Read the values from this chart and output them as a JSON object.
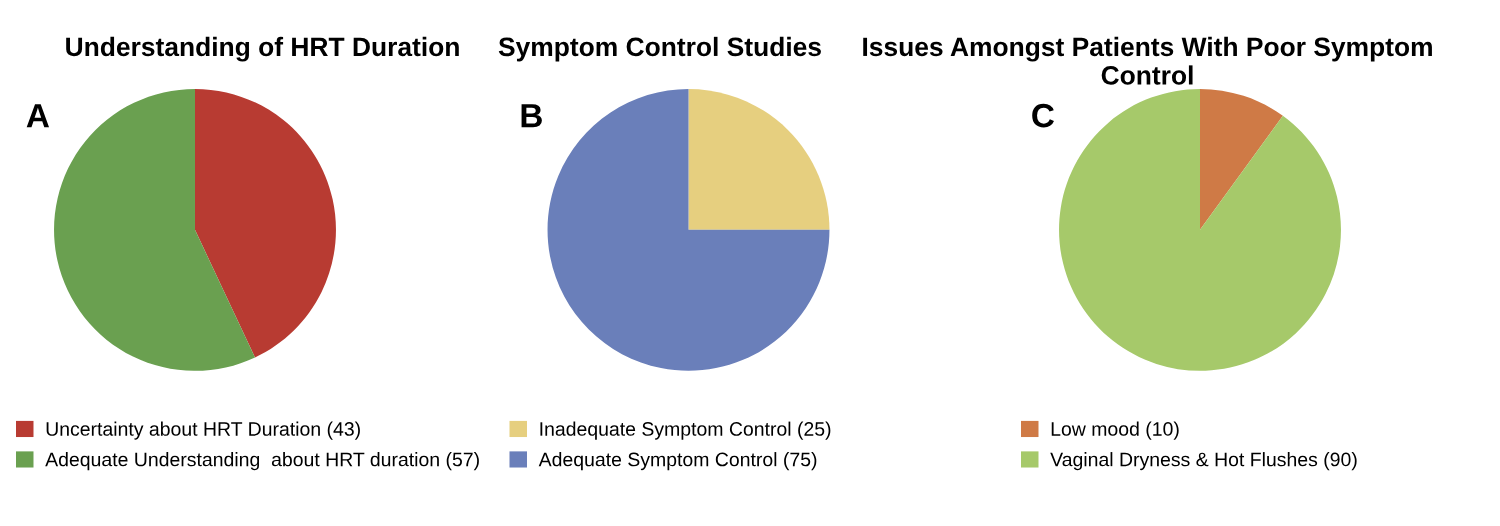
{
  "chart_data": [
    {
      "type": "pie",
      "title": "Understanding of HRT Duration",
      "annotations": [
        "A"
      ],
      "legend": "bottom",
      "categories": [
        "Uncertainty about HRT Duration (43)",
        "Adequate Understanding  about HRT duration (57)"
      ],
      "values": [
        43,
        57
      ],
      "colors": [
        "#b83b32",
        "#6aa050"
      ]
    },
    {
      "type": "pie",
      "title": "Symptom Control Studies",
      "annotations": [
        "B"
      ],
      "legend": "bottom",
      "categories": [
        "Inadequate Symptom Control (25)",
        "Adequate Symptom Control (75)"
      ],
      "values": [
        25,
        75
      ],
      "colors": [
        "#e6cf7f",
        "#6a7fba"
      ]
    },
    {
      "type": "pie",
      "title": "Issues Amongst Patients With Poor Symptom\nControl",
      "annotations": [
        "C"
      ],
      "legend": "bottom",
      "categories": [
        "Low mood (10)",
        "Vaginal Dryness & Hot Flushes (90)"
      ],
      "values": [
        10,
        90
      ],
      "colors": [
        "#cf7a46",
        "#a6c96a"
      ]
    }
  ]
}
